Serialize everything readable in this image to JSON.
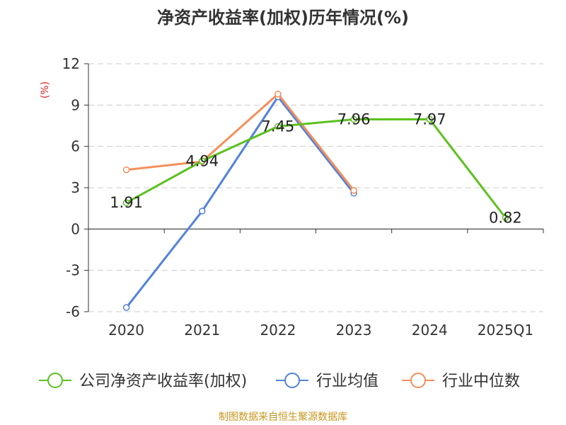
{
  "chart_data": {
    "type": "line",
    "title": "净资产收益率(加权)历年情况(%)",
    "ylabel": "(%)",
    "categories": [
      "2020",
      "2021",
      "2022",
      "2023",
      "2024",
      "2025Q1"
    ],
    "ylim": [
      -6,
      12
    ],
    "yticks": [
      12,
      9,
      6,
      3,
      0,
      -3,
      -6
    ],
    "ytick_labels": [
      "12",
      "9",
      "6",
      "3",
      "0",
      "-3",
      "-6"
    ],
    "grid": true,
    "legend_position": "bottom",
    "series": [
      {
        "name": "公司净资产收益率(加权)",
        "color": "#5cc11f",
        "values": [
          1.91,
          4.94,
          7.45,
          7.96,
          7.97,
          0.82
        ],
        "labels": [
          "1.91",
          "4.94",
          "7.45",
          "7.96",
          "7.97",
          "0.82"
        ]
      },
      {
        "name": "行业均值",
        "color": "#5282dc",
        "values": [
          -5.7,
          1.3,
          9.6,
          2.6,
          null,
          null
        ]
      },
      {
        "name": "行业中位数",
        "color": "#f58f5c",
        "values": [
          4.3,
          4.9,
          9.8,
          2.8,
          null,
          null
        ]
      }
    ],
    "source": "制图数据来自恒生聚源数据库"
  }
}
